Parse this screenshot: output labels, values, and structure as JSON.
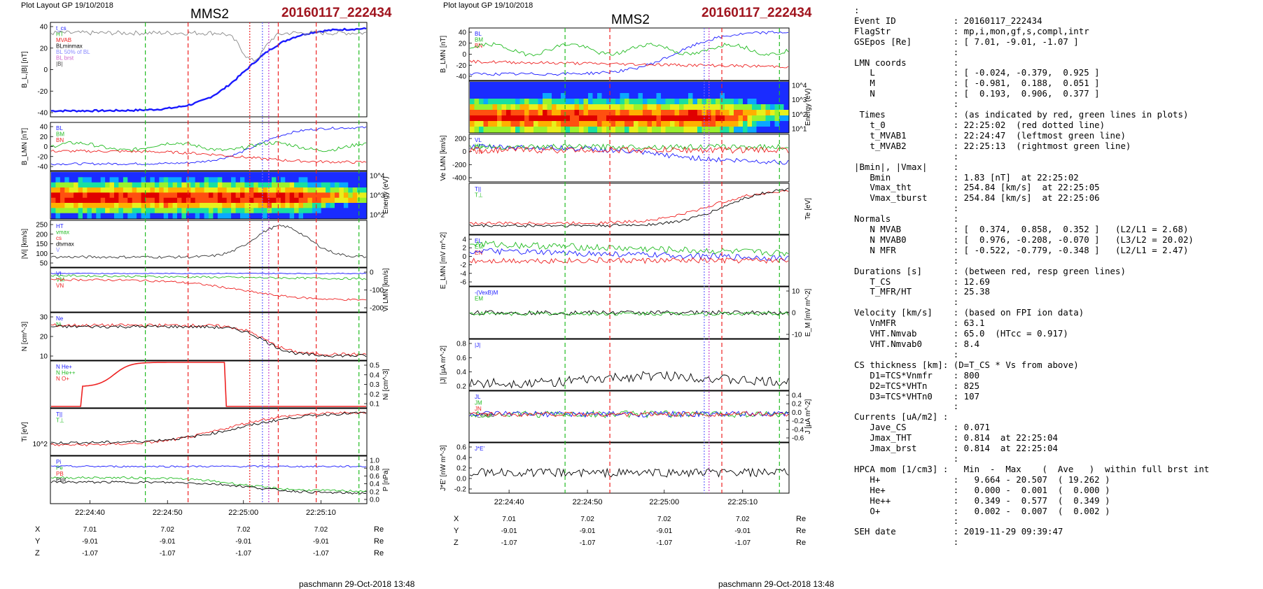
{
  "left_header": "Plot Layout GP 19/10/2018",
  "mid_header": "Plot layout GP 19/10/2018",
  "spacecraft": "MMS2",
  "event": "20160117_222434",
  "footer": "paschmann 29-Oct-2018 13:48",
  "colors": {
    "event": "#a0141e",
    "L": "#1a1aff",
    "M": "#22bb22",
    "N": "#ee2222"
  },
  "time_ticks": [
    "22:24:40",
    "22:24:50",
    "22:25:00",
    "22:25:10"
  ],
  "orbit": {
    "rows": [
      {
        "label": "X",
        "values": [
          "7.01",
          "7.02",
          "7.02",
          "7.02"
        ],
        "unit": "Re"
      },
      {
        "label": "Y",
        "values": [
          "-9.01",
          "-9.01",
          "-9.01",
          "-9.01"
        ],
        "unit": "Re"
      },
      {
        "label": "Z",
        "values": [
          "-1.07",
          "-1.07",
          "-1.07",
          "-1.07"
        ],
        "unit": "Re"
      }
    ]
  },
  "chart_data": [
    {
      "type": "line",
      "title": "MMS2 20160117_222434",
      "x": [
        "22:24:40",
        "22:24:50",
        "22:25:00",
        "22:25:10"
      ],
      "panels": [
        {
          "ylabel": "B_L,|B| [nT]",
          "ticks": [
            "40",
            "20",
            "0",
            "-20",
            "-40"
          ],
          "legend": [
            "t_cs",
            "HT",
            "MVAB",
            "BLminmax",
            "BL 50% of BL",
            "BL brst",
            "|B|"
          ]
        },
        {
          "ylabel": "B_LMN [nT]",
          "ticks": [
            "40",
            "20",
            "0",
            "-20",
            "-40"
          ],
          "legend": [
            "BL",
            "BM",
            "BN"
          ]
        },
        {
          "ylabel": "Energy (eV)",
          "ticks": [
            "10^4",
            "10^3",
            "10^2"
          ],
          "type": "heatmap"
        },
        {
          "ylabel": "|Vi| [km/s]",
          "ticks": [
            "250",
            "200",
            "150",
            "100",
            "50"
          ],
          "legend": [
            "HT",
            "vmax",
            "cs",
            "dtvmax",
            "V"
          ]
        },
        {
          "ylabel": "Vi LMN [km/s]",
          "ticks": [
            "0",
            "-100",
            "-200"
          ],
          "legend": [
            "VL",
            "VM",
            "VN"
          ]
        },
        {
          "ylabel": "N [cm^-3]",
          "ticks": [
            "30",
            "20",
            "10"
          ],
          "legend": [
            "Ne",
            "Ni"
          ]
        },
        {
          "ylabel": "Ni [cm^-3]",
          "ticks": [
            "0.5",
            "0.4",
            "0.3",
            "0.2",
            "0.1"
          ],
          "legend": [
            "N He+",
            "N He++",
            "N O+"
          ]
        },
        {
          "ylabel": "Ti [eV]",
          "ticks": [
            "10^2"
          ],
          "legend": [
            "T||",
            "T⊥"
          ]
        },
        {
          "ylabel": "P [nPa]",
          "ticks": [
            "1.0",
            "0.8",
            "0.6",
            "0.4",
            "0.2",
            "0.0"
          ],
          "legend": [
            "Pi",
            "Pe",
            "PB",
            "Ptot"
          ]
        }
      ]
    },
    {
      "type": "line",
      "title": "MMS2 20160117_222434",
      "x": [
        "22:24:40",
        "22:24:50",
        "22:25:00",
        "22:25:10"
      ],
      "panels": [
        {
          "ylabel": "B_LMN [nT]",
          "ticks": [
            "40",
            "20",
            "0",
            "-20",
            "-40"
          ],
          "legend": [
            "BL",
            "BM",
            "BN"
          ]
        },
        {
          "ylabel": "Energy (eV)",
          "ticks": [
            "10^4",
            "10^3",
            "10^2",
            "10^1"
          ],
          "type": "heatmap"
        },
        {
          "ylabel": "Ve LMN [km/s]",
          "ticks": [
            "200",
            "0",
            "-200",
            "-400"
          ],
          "legend": [
            "VL",
            "VM",
            "VN"
          ]
        },
        {
          "ylabel": "Te [eV]",
          "ticks": [],
          "legend": [
            "T||",
            "T⊥"
          ]
        },
        {
          "ylabel": "E_LMN [mV m^-2]",
          "ticks": [
            "4",
            "2",
            "0",
            "-2",
            "-4",
            "-6"
          ],
          "legend": [
            "EL",
            "EM",
            "EN"
          ]
        },
        {
          "ylabel": "E_M [mV m^-2]",
          "ticks": [
            "10",
            "0",
            "-10"
          ],
          "legend": [
            "-(VexB)M",
            "EM"
          ]
        },
        {
          "ylabel": "|J| [µA m^-2]",
          "ticks": [
            "0.8",
            "0.6",
            "0.4",
            "0.2"
          ],
          "legend": [
            "|J|"
          ]
        },
        {
          "ylabel": "J [µA m^-2]",
          "ticks": [
            "0.4",
            "0.2",
            "0.0",
            "-0.2",
            "-0.4",
            "-0.6"
          ],
          "legend": [
            "JL",
            "JM",
            "JN",
            "J_maxL"
          ]
        },
        {
          "ylabel": "J*E' [nW m^-3]",
          "ticks": [
            "0.6",
            "0.4",
            "0.2",
            "0.0",
            "-0.2"
          ],
          "legend": [
            "J*E'"
          ]
        }
      ]
    }
  ],
  "info_lines": [
    ":",
    "Event ID           : 20160117_222434",
    "FlagStr            : mp,i,mon,gf,s,compl,intr",
    "GSEpos [Re]        : [ 7.01, -9.01, -1.07 ]",
    "                   :",
    "LMN coords         :",
    "   L               : [ -0.024, -0.379,  0.925 ]",
    "   M               : [ -0.981,  0.188,  0.051 ]",
    "   N               : [  0.193,  0.906,  0.377 ]",
    "                   :",
    " Times             : (as indicated by red, green lines in plots)",
    "   t_0             : 22:25:02  (red dotted line)",
    "   t_MVAB1         : 22:24:47  (leftmost green line)",
    "   t_MVAB2         : 22:25:13  (rightmost green line)",
    "                   :",
    "|Bmin|, |Vmax|     :",
    "   Bmin            : 1.83 [nT]  at 22:25:02",
    "   Vmax_tht        : 254.84 [km/s]  at 22:25:05",
    "   Vmax_tburst     : 254.84 [km/s]  at 22:25:06",
    "                   :",
    "Normals            :",
    "   N MVAB          : [  0.374,  0.858,  0.352 ]   (L2/L1 = 2.68)",
    "   N MVAB0         : [  0.976, -0.208, -0.070 ]   (L3/L2 = 20.02)",
    "   N MFR           : [ -0.522, -0.779, -0.348 ]   (L2/L1 = 2.47)",
    "                   :",
    "Durations [s]      : (between red, resp green lines)",
    "   T_CS            : 12.69",
    "   T_MFR/HT        : 25.38",
    "                   :",
    "Velocity [km/s]    : (based on FPI ion data)",
    "   VnMFR           : 63.1",
    "   VHT.Nmvab       : 65.0  (HTcc = 0.917)",
    "   VHT.Nmvab0      : 8.4",
    "                   :",
    "CS thickness [km]: (D=T_CS * Vs from above)",
    "   D1=TCS*Vnmfr    : 800",
    "   D2=TCS*VHTn     : 825",
    "   D3=TCS*VHTn0    : 107",
    "                   :",
    "Currents [uA/m2] :",
    "   Jave_CS         : 0.071",
    "   Jmax_THT        : 0.814  at 22:25:04",
    "   Jmax_brst       : 0.814  at 22:25:04",
    "                   :",
    "HPCA mom [1/cm3] :   Min  -  Max    (  Ave   )  within full brst int",
    "   H+              :   9.664 - 20.507  ( 19.262 )",
    "   He+             :   0.000 -  0.001  (  0.000 )",
    "   He++            :   0.349 -  0.577  (  0.349 )",
    "   O+              :   0.002 -  0.007  (  0.002 )",
    "                   :",
    "SEH date           : 2019-11-29 09:39:47",
    "                   :"
  ]
}
